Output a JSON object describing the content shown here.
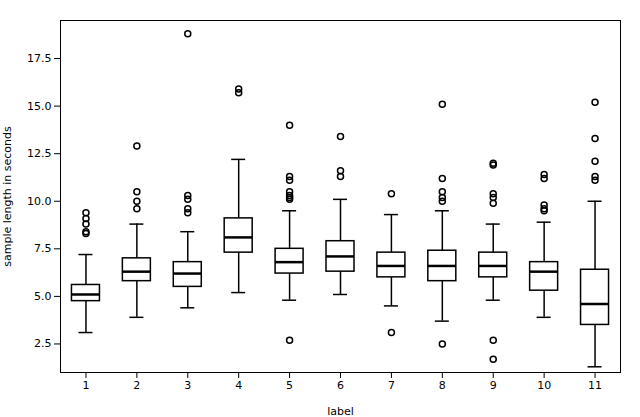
{
  "chart_data": {
    "type": "box",
    "xlabel": "label",
    "ylabel": "sample length in seconds",
    "x": [
      1,
      2,
      3,
      4,
      5,
      6,
      7,
      8,
      9,
      10,
      11
    ],
    "median": [
      5.1,
      6.3,
      6.2,
      8.1,
      6.8,
      7.1,
      6.6,
      6.6,
      6.6,
      6.3,
      4.6
    ],
    "q1": [
      4.75,
      5.8,
      5.5,
      7.3,
      6.2,
      6.3,
      6.0,
      5.8,
      6.0,
      5.3,
      3.5
    ],
    "q3": [
      5.6,
      7.0,
      6.8,
      9.1,
      7.5,
      7.9,
      7.3,
      7.4,
      7.3,
      6.8,
      6.4
    ],
    "whislo": [
      3.1,
      3.9,
      4.4,
      5.2,
      4.8,
      5.1,
      4.5,
      3.7,
      4.8,
      3.9,
      1.3
    ],
    "whishi": [
      7.2,
      8.8,
      8.4,
      12.2,
      9.5,
      10.1,
      9.3,
      9.5,
      8.8,
      8.9,
      10.0
    ],
    "fliers": [
      [
        8.8,
        8.4,
        8.3,
        9.1,
        9.4
      ],
      [
        9.6,
        10.0,
        10.5,
        12.9
      ],
      [
        9.4,
        9.6,
        10.1,
        10.3,
        18.8
      ],
      [
        15.7,
        15.9
      ],
      [
        10.1,
        10.2,
        10.3,
        10.5,
        11.1,
        11.3,
        14.0,
        2.7
      ],
      [
        11.3,
        11.6,
        13.4
      ],
      [
        10.4,
        3.1
      ],
      [
        10.0,
        10.2,
        10.5,
        11.2,
        15.1,
        2.5
      ],
      [
        9.9,
        10.2,
        10.4,
        11.9,
        12.0,
        1.7,
        2.7
      ],
      [
        9.5,
        9.6,
        9.8,
        11.2,
        11.4
      ],
      [
        11.1,
        11.3,
        12.1,
        13.3,
        15.2
      ]
    ],
    "xlim": [
      0.5,
      11.5
    ],
    "xticks": [
      1,
      2,
      3,
      4,
      5,
      6,
      7,
      8,
      9,
      10,
      11
    ],
    "ylim": [
      1.0,
      19.5
    ],
    "yticks": [
      2.5,
      {
        "value": 5.0,
        "label": "5.0"
      },
      7.5,
      {
        "value": 10.0,
        "label": "10.0"
      },
      12.5,
      {
        "value": 15.0,
        "label": "15.0"
      },
      17.5
    ],
    "grid": false
  }
}
